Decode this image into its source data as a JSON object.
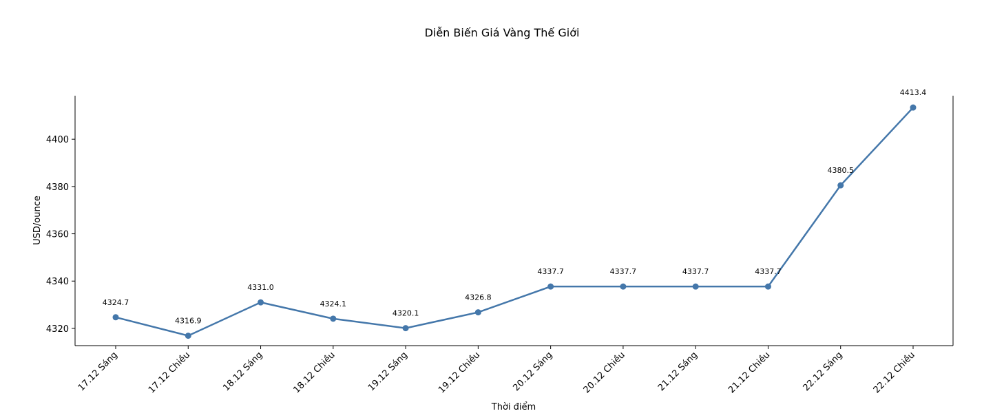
{
  "chart_data": {
    "type": "line",
    "title": "Diễn Biến Giá Vàng Thế Giới",
    "xlabel": "Thời điểm",
    "ylabel": "USD/ounce",
    "categories": [
      "17.12 Sáng",
      "17.12 Chiều",
      "18.12 Sáng",
      "18.12 Chiều",
      "19.12 Sáng",
      "19.12 Chiều",
      "20.12 Sáng",
      "20.12 Chiều",
      "21.12 Sáng",
      "21.12 Chiều",
      "22.12 Sáng",
      "22.12 Chiều"
    ],
    "values": [
      4324.7,
      4316.9,
      4331.0,
      4324.1,
      4320.1,
      4326.8,
      4337.7,
      4337.7,
      4337.7,
      4337.7,
      4380.5,
      4413.4
    ],
    "data_labels": [
      "4324.7",
      "4316.9",
      "4331.0",
      "4324.1",
      "4320.1",
      "4326.8",
      "4337.7",
      "4337.7",
      "4337.7",
      "4337.7",
      "4380.5",
      "4413.4"
    ],
    "yticks": [
      4320,
      4340,
      4360,
      4380,
      4400
    ],
    "ylim": [
      4312.7,
      4418.4
    ],
    "grid": false,
    "line_color": "#4477aa"
  }
}
